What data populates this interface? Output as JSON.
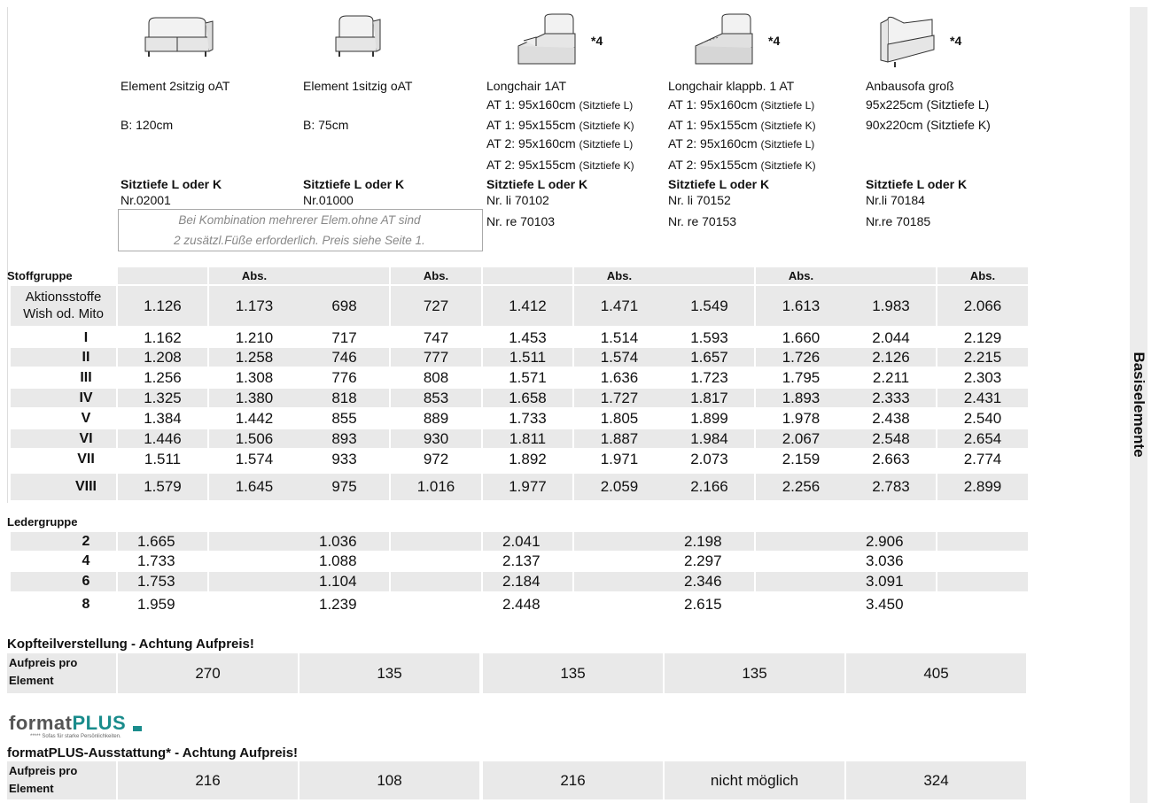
{
  "sidebar": "Basiselemente",
  "products": [
    {
      "name": "Element 2sitzig oAT",
      "details": [
        "B: 120cm"
      ],
      "depth": "Sitztiefe L oder K",
      "numbers": [
        "Nr.02001"
      ]
    },
    {
      "name": "Element 1sitzig oAT",
      "details": [
        "B: 75cm"
      ],
      "depth": "Sitztiefe L oder K",
      "numbers": [
        "Nr.01000"
      ]
    },
    {
      "name": "Longchair 1AT",
      "badge": "*4",
      "details": [
        {
          "text": "AT 1: 95x160cm",
          "note": "(Sitztiefe L)"
        },
        {
          "text": "AT 1: 95x155cm",
          "note": "(Sitztiefe K)"
        },
        {
          "text": "AT 2: 95x160cm",
          "note": "(Sitztiefe L)"
        },
        {
          "text": "AT 2: 95x155cm",
          "note": "(Sitztiefe K)"
        }
      ],
      "depth": "Sitztiefe L oder K",
      "numbers": [
        "Nr. li 70102",
        "Nr. re 70103"
      ]
    },
    {
      "name": "Longchair klappb. 1 AT",
      "badge": "*4",
      "details": [
        {
          "text": "AT 1: 95x160cm",
          "note": "(Sitztiefe L)"
        },
        {
          "text": "AT 1: 95x155cm",
          "note": "(Sitztiefe K)"
        },
        {
          "text": "AT 2: 95x160cm",
          "note": "(Sitztiefe L)"
        },
        {
          "text": "AT 2: 95x155cm",
          "note": "(Sitztiefe K)"
        }
      ],
      "depth": "Sitztiefe L oder K",
      "numbers": [
        "Nr. li 70152",
        "Nr. re 70153"
      ]
    },
    {
      "name": "Anbausofa groß",
      "badge": "*4",
      "details": [
        "95x225cm (Sitztiefe L)",
        "90x220cm (Sitztiefe K)"
      ],
      "depth": "Sitztiefe L oder K",
      "numbers": [
        "Nr.li 70184",
        "Nr.re 70185"
      ]
    }
  ],
  "note": [
    "Bei Kombination mehrerer Elem.ohne AT sind",
    "2 zusätzl.Füße erforderlich. Preis siehe Seite 1."
  ],
  "fabric": {
    "title": "Stoffgruppe",
    "abs": "Abs.",
    "rows": [
      {
        "group": [
          "Aktionsstoffe",
          "Wish od. Mito"
        ],
        "prices": [
          "1.126",
          "1.173",
          "698",
          "727",
          "1.412",
          "1.471",
          "1.549",
          "1.613",
          "1.983",
          "2.066"
        ]
      },
      {
        "group": [
          "I"
        ],
        "prices": [
          "1.162",
          "1.210",
          "717",
          "747",
          "1.453",
          "1.514",
          "1.593",
          "1.660",
          "2.044",
          "2.129"
        ]
      },
      {
        "group": [
          "II"
        ],
        "prices": [
          "1.208",
          "1.258",
          "746",
          "777",
          "1.511",
          "1.574",
          "1.657",
          "1.726",
          "2.126",
          "2.215"
        ]
      },
      {
        "group": [
          "III"
        ],
        "prices": [
          "1.256",
          "1.308",
          "776",
          "808",
          "1.571",
          "1.636",
          "1.723",
          "1.795",
          "2.211",
          "2.303"
        ]
      },
      {
        "group": [
          "IV"
        ],
        "prices": [
          "1.325",
          "1.380",
          "818",
          "853",
          "1.658",
          "1.727",
          "1.817",
          "1.893",
          "2.333",
          "2.431"
        ]
      },
      {
        "group": [
          "V"
        ],
        "prices": [
          "1.384",
          "1.442",
          "855",
          "889",
          "1.733",
          "1.805",
          "1.899",
          "1.978",
          "2.438",
          "2.540"
        ]
      },
      {
        "group": [
          "VI"
        ],
        "prices": [
          "1.446",
          "1.506",
          "893",
          "930",
          "1.811",
          "1.887",
          "1.984",
          "2.067",
          "2.548",
          "2.654"
        ]
      },
      {
        "group": [
          "VII"
        ],
        "prices": [
          "1.511",
          "1.574",
          "933",
          "972",
          "1.892",
          "1.971",
          "2.073",
          "2.159",
          "2.663",
          "2.774"
        ]
      },
      {
        "group": [
          "VIII"
        ],
        "prices": [
          "1.579",
          "1.645",
          "975",
          "1.016",
          "1.977",
          "2.059",
          "2.166",
          "2.256",
          "2.783",
          "2.899"
        ]
      }
    ]
  },
  "leather": {
    "title": "Ledergruppe",
    "rows": [
      {
        "group": "2",
        "prices": [
          "1.665",
          "1.036",
          "2.041",
          "2.198",
          "2.906"
        ]
      },
      {
        "group": "4",
        "prices": [
          "1.733",
          "1.088",
          "2.137",
          "2.297",
          "3.036"
        ]
      },
      {
        "group": "6",
        "prices": [
          "1.753",
          "1.104",
          "2.184",
          "2.346",
          "3.091"
        ]
      },
      {
        "group": "8",
        "prices": [
          "1.959",
          "1.239",
          "2.448",
          "2.615",
          "3.450"
        ]
      }
    ]
  },
  "headboard": {
    "title": "Kopfteilverstellung - Achtung Aufpreis!",
    "row_label": [
      "Aufpreis pro",
      "Element"
    ],
    "prices": [
      "270",
      "135",
      "135",
      "135",
      "405"
    ]
  },
  "formatplus": {
    "logo": "format",
    "logo_accent": "PLUS",
    "tagline": "***** Sofas für starke Persönlichkeiten.",
    "title": "formatPLUS-Ausstattung* - Achtung Aufpreis!",
    "row_label": [
      "Aufpreis pro",
      "Element"
    ],
    "prices": [
      "216",
      "108",
      "216",
      "nicht möglich",
      "324"
    ]
  }
}
